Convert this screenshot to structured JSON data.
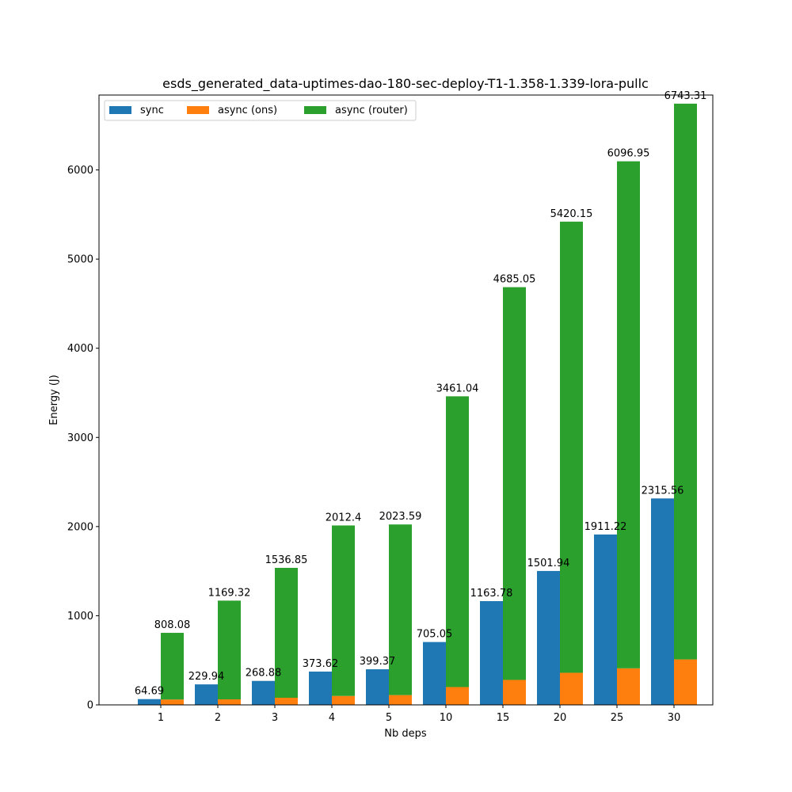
{
  "chart_data": {
    "type": "bar",
    "title": "esds_generated_data-uptimes-dao-180-sec-deploy-T1-1.358-1.339-lora-pullc",
    "xlabel": "Nb deps",
    "ylabel": "Energy (J)",
    "categories": [
      "1",
      "2",
      "3",
      "4",
      "5",
      "10",
      "15",
      "20",
      "25",
      "30"
    ],
    "ylim": [
      0,
      6840
    ],
    "yticks": [
      "0",
      "1000",
      "2000",
      "3000",
      "4000",
      "5000",
      "6000"
    ],
    "grid": false,
    "legend_position": "top-left",
    "series": [
      {
        "name": "sync",
        "color": "#1f77b4",
        "values": [
          64.69,
          229.94,
          268.88,
          373.62,
          399.37,
          705.05,
          1163.78,
          1501.94,
          1911.22,
          2315.56
        ],
        "labels": [
          "64.69",
          "229.94",
          "268.88",
          "373.62",
          "399.37",
          "705.05",
          "1163.78",
          "1501.94",
          "1911.22",
          "2315.56"
        ]
      },
      {
        "name": "async (ons)",
        "color": "#ff7f0e",
        "values": [
          60,
          62,
          80,
          100,
          110,
          200,
          280,
          360,
          410,
          510
        ]
      },
      {
        "name": "async (router)",
        "color": "#2ca02c",
        "stacked_on": "async (ons)",
        "totals": [
          808.08,
          1169.32,
          1536.85,
          2012.4,
          2023.59,
          3461.04,
          4685.05,
          5420.15,
          6096.95,
          6743.31
        ],
        "labels": [
          "808.08",
          "1169.32",
          "1536.85",
          "2012.4",
          "2023.59",
          "3461.04",
          "4685.05",
          "5420.15",
          "6096.95",
          "6743.31"
        ]
      }
    ]
  }
}
